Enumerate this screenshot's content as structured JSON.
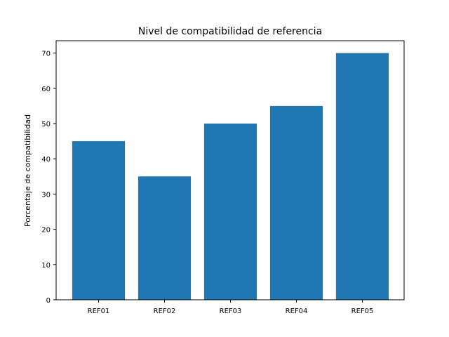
{
  "chart_data": {
    "type": "bar",
    "title": "Nivel de compatibilidad de referencia",
    "xlabel": "",
    "ylabel": "Porcentaje de compatibilidad",
    "categories": [
      "REF01",
      "REF02",
      "REF03",
      "REF04",
      "REF05"
    ],
    "values": [
      45,
      35,
      50,
      55,
      70
    ],
    "ylim": [
      0,
      73.5
    ],
    "yticks": [
      0,
      10,
      20,
      30,
      40,
      50,
      60,
      70
    ],
    "grid": false,
    "legend": "none",
    "bar_color": "#1f77b4"
  }
}
